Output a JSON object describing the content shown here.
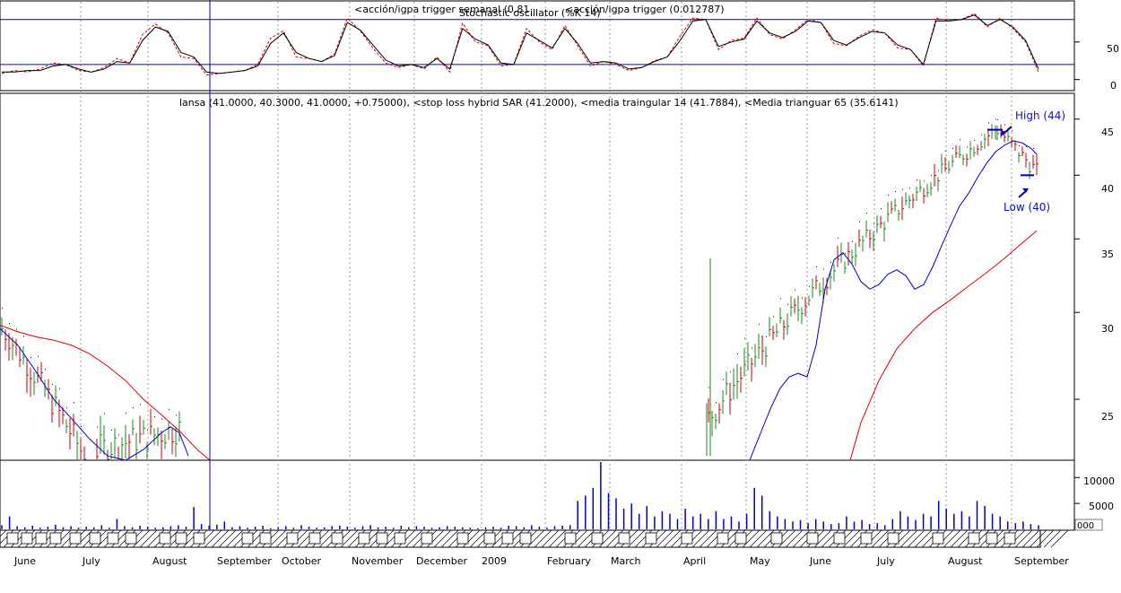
{
  "chart_data": [
    {
      "type": "line",
      "panel": "stochastic-oscillator",
      "legend_main": "<acción/igpa trigger semanal (0.81",
      "legend_overlap": "Stochastic oscillator (%K 14)",
      "legend_signal": "<acción/igpa trigger (0.012787)",
      "yticks": [
        0,
        50
      ],
      "reference_lines": [
        20,
        80
      ],
      "ylim": [
        -10,
        100
      ],
      "series": [
        {
          "values": [
            8,
            12,
            10,
            14,
            22,
            20,
            12,
            10,
            16,
            28,
            22,
            60,
            74,
            62,
            30,
            28,
            6,
            8,
            10,
            12,
            20,
            55,
            65,
            30,
            28,
            24,
            34,
            82,
            65,
            42,
            22,
            16,
            20,
            14,
            30,
            10,
            75,
            50,
            45,
            18,
            20,
            68,
            50,
            40,
            72,
            45,
            18,
            24,
            20,
            12,
            16,
            25,
            30,
            58,
            82,
            80,
            40,
            52,
            55,
            82,
            60,
            54,
            66,
            80,
            76,
            48,
            45,
            58,
            66,
            62,
            42,
            40,
            18,
            82,
            78,
            80,
            88,
            70,
            82,
            68,
            50,
            10
          ]
        },
        {
          "values": [
            10,
            10,
            12,
            12,
            18,
            20,
            14,
            10,
            14,
            24,
            22,
            52,
            70,
            64,
            36,
            30,
            10,
            8,
            10,
            12,
            18,
            48,
            62,
            36,
            28,
            24,
            32,
            76,
            66,
            46,
            26,
            18,
            20,
            16,
            28,
            14,
            68,
            54,
            46,
            22,
            20,
            62,
            52,
            42,
            68,
            48,
            22,
            24,
            22,
            14,
            16,
            24,
            30,
            52,
            78,
            80,
            44,
            50,
            54,
            78,
            62,
            56,
            64,
            78,
            76,
            52,
            46,
            56,
            64,
            62,
            46,
            40,
            20,
            78,
            78,
            80,
            86,
            72,
            80,
            70,
            52,
            14
          ]
        }
      ]
    },
    {
      "type": "bar",
      "panel": "price",
      "legend": "lansa (41.0000, 40.3000, 41.0000, +0.75000), <stop loss hybrid SAR (41.2000), <media traingular 14 (41.7884), <Media trianguar  65 (35.6141)",
      "yticks": [
        25,
        30,
        35,
        40,
        45
      ],
      "ylim": [
        22,
        47.5
      ],
      "categories": [
        "June",
        "July",
        "August",
        "September",
        "October",
        "November",
        "December",
        "2009",
        "February",
        "March",
        "April",
        "May",
        "June",
        "July",
        "August",
        "September"
      ],
      "annotations": {
        "high": "High (44)",
        "low": "Low (40)"
      },
      "ohlc_segments": [
        {
          "name": "lansa-down-2008",
          "color": "#cc0000",
          "x_start": 2,
          "x_end": 96,
          "y_start": 29.0,
          "y_end": 22.2
        },
        {
          "name": "lansa-bounce-2008",
          "color": "#1a8a1a",
          "x_start": 108,
          "x_end": 200,
          "y_start": 22.5,
          "y_end": 23.5
        },
        {
          "name": "lansa-rise-2009",
          "color": "#1a8a1a",
          "x_start": 790,
          "x_end": 1110,
          "y_start": 24.0,
          "y_end": 44.0
        },
        {
          "name": "lansa-pullback-2009",
          "color": "#cc0000",
          "x_start": 1112,
          "x_end": 1158,
          "y_start": 44.0,
          "y_end": 40.3
        }
      ],
      "series": [
        {
          "name": "media traingular 14",
          "color": "#0000cc",
          "x": [
            0,
            20,
            40,
            60,
            80,
            100,
            120,
            140,
            160,
            180,
            190,
            200,
            210,
            836,
            850,
            860,
            870,
            880,
            890,
            900,
            910,
            920,
            930,
            940,
            950,
            960,
            970,
            980,
            990,
            1000,
            1010,
            1020,
            1030,
            1040,
            1050,
            1060,
            1070,
            1080,
            1090,
            1100,
            1110,
            1120,
            1130,
            1140,
            1150,
            1156
          ],
          "y": [
            29.0,
            28.0,
            26.5,
            25.0,
            24.0,
            23.0,
            22.2,
            22.0,
            22.5,
            23.3,
            23.6,
            23.3,
            22.2,
            22.0,
            23.5,
            24.6,
            25.6,
            26.2,
            26.4,
            26.2,
            28.0,
            31.5,
            33.5,
            34.0,
            33.2,
            32.0,
            31.5,
            31.8,
            32.5,
            32.8,
            32.4,
            31.5,
            31.8,
            33.0,
            34.5,
            36.0,
            37.5,
            38.5,
            39.8,
            41.0,
            42.0,
            42.6,
            43.0,
            42.8,
            42.3,
            41.8
          ]
        },
        {
          "name": "Media trianguar 65",
          "color": "#dd0000",
          "x": [
            0,
            20,
            40,
            60,
            80,
            100,
            120,
            140,
            160,
            180,
            200,
            220,
            234,
            948,
            960,
            980,
            1000,
            1020,
            1040,
            1060,
            1080,
            1100,
            1120,
            1140,
            1156
          ],
          "y": [
            29.2,
            28.8,
            28.5,
            28.3,
            28.0,
            27.5,
            26.8,
            26.0,
            25.0,
            24.2,
            23.4,
            22.5,
            22.0,
            22.0,
            23.8,
            26.0,
            27.8,
            29.0,
            30.0,
            30.8,
            31.7,
            32.6,
            33.6,
            34.7,
            35.6
          ]
        }
      ]
    },
    {
      "type": "bar",
      "panel": "volume",
      "yticks": [
        5000,
        10000
      ],
      "ylim": [
        0,
        13000
      ],
      "values": [
        800,
        2500,
        600,
        400,
        700,
        300,
        500,
        900,
        400,
        600,
        300,
        500,
        400,
        800,
        300,
        2000,
        600,
        400,
        700,
        500,
        300,
        400,
        600,
        800,
        500,
        4300,
        1000,
        700,
        900,
        1500,
        400,
        600,
        300,
        500,
        700,
        200,
        400,
        600,
        300,
        800,
        500,
        300,
        400,
        600,
        700,
        500,
        300,
        600,
        800,
        400,
        500,
        300,
        700,
        400,
        600,
        500,
        300,
        400,
        600,
        500,
        400,
        300,
        200,
        400,
        500,
        300,
        700,
        600,
        400,
        800,
        500,
        300,
        600,
        700,
        800,
        5500,
        6500,
        8000,
        13000,
        7000,
        6000,
        4000,
        5000,
        3000,
        4500,
        2500,
        3500,
        3000,
        2000,
        4000,
        2500,
        3000,
        2000,
        3500,
        2000,
        2500,
        1500,
        3000,
        8000,
        6500,
        3500,
        2500,
        2000,
        1500,
        1800,
        1200,
        2000,
        1500,
        1000,
        1200,
        2500,
        1500,
        1800,
        1000,
        1200,
        800,
        2000,
        3500,
        2500,
        1800,
        3000,
        2500,
        5500,
        4000,
        3000,
        3500,
        2500,
        5500,
        4500,
        3000,
        2500,
        1500,
        1200,
        1500,
        1000,
        800
      ]
    }
  ],
  "stochastic_right_ticks": [
    "50",
    "0"
  ],
  "price_right_ticks": [
    "45",
    "40",
    "35",
    "30",
    "25"
  ],
  "volume_right_ticks": [
    "10000",
    "5000"
  ],
  "volume_scale_label": "000",
  "month_labels": [
    "June",
    "July",
    "August",
    "September",
    "October",
    "November",
    "December",
    "2009",
    "February",
    "March",
    "April",
    "May",
    "June",
    "July",
    "August",
    "September"
  ],
  "colors": {
    "up": "#1a8a1a",
    "down": "#cc0000",
    "grid": "#999999",
    "frame": "#000000",
    "blue_line": "#0000cc",
    "red_line": "#dd0000"
  }
}
